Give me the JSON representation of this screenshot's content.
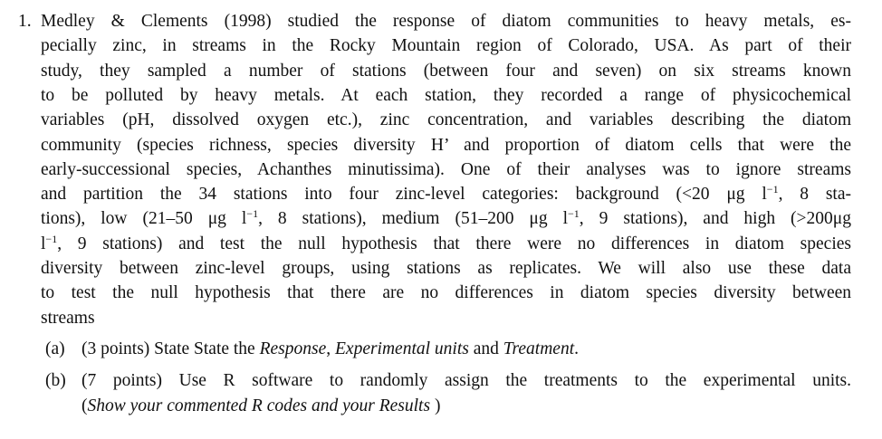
{
  "question": {
    "number": "1.",
    "lines": [
      [
        "Medley & Clements (1998) studied the response of diatom communities to heavy metals, es-"
      ],
      [
        "pecially zinc, in streams in the Rocky Mountain region of Colorado, USA. As part of their"
      ],
      [
        "study, they sampled a number of stations (between four and seven) on six streams known"
      ],
      [
        "to be polluted by heavy metals.  At each station, they recorded a range of physicochemical"
      ],
      [
        "variables (pH, dissolved oxygen etc.), zinc concentration, and variables describing the diatom"
      ],
      [
        "community (species richness, species diversity H’ and proportion of diatom cells that were the"
      ],
      [
        "early-successional species, Achanthes minutissima). One of their analyses was to ignore streams"
      ],
      [
        "and partition the 34 stations into four zinc-level categories: background (<20 μg l",
        {
          "sup": "−1"
        },
        ", 8 sta-"
      ],
      [
        "tions), low (21–50 μg l",
        {
          "sup": "−1"
        },
        ", 8 stations), medium (51–200 μg l",
        {
          "sup": "−1"
        },
        ", 9 stations), and high (>200μg"
      ],
      [
        "l",
        {
          "sup": "−1"
        },
        ", 9 stations) and test the null hypothesis that there were no differences in diatom species"
      ],
      [
        "diversity between zinc-level groups, using stations as replicates.  We will also use these data"
      ],
      [
        "to test the null hypothesis that there are no differences in diatom species diversity between"
      ],
      [
        "streams"
      ]
    ],
    "parts": [
      {
        "label": "(a)",
        "lines": [
          [
            "(3 points) State State the ",
            {
              "it": "Response"
            },
            ", ",
            {
              "it": "Experimental units"
            },
            " and ",
            {
              "it": "Treatment"
            },
            "."
          ]
        ]
      },
      {
        "label": "(b)",
        "lines": [
          [
            "(7 points) Use R software to randomly assign the treatments to the experimental units."
          ],
          [
            "(",
            {
              "it": "Show your commented R codes and your Results"
            },
            " )"
          ]
        ]
      }
    ]
  }
}
